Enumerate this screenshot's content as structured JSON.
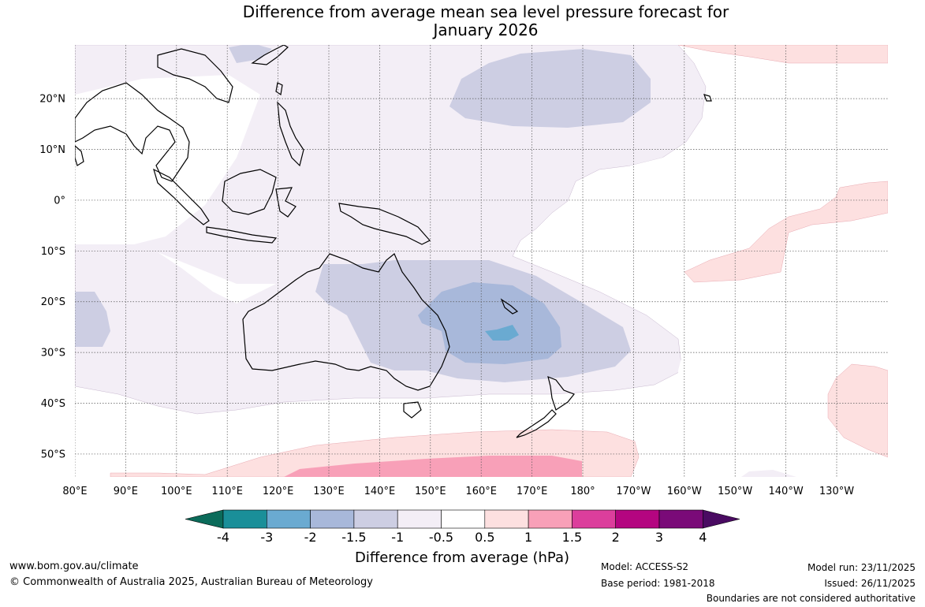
{
  "title_line1": "Difference from average mean sea level pressure forecast for",
  "title_line2": "January 2026",
  "lat_labels": [
    "20°N",
    "10°N",
    "0°",
    "10°S",
    "20°S",
    "30°S",
    "40°S",
    "50°S"
  ],
  "lon_labels": [
    "80°E",
    "90°E",
    "100°E",
    "110°E",
    "120°E",
    "130°E",
    "140°E",
    "150°E",
    "160°E",
    "170°E",
    "180°",
    "170°W",
    "160°W",
    "150°W",
    "140°W",
    "130°W"
  ],
  "legend": {
    "title": "Difference from average (hPa)",
    "tick_labels": [
      "-4",
      "-3",
      "-2",
      "-1.5",
      "-1",
      "-0.5",
      "0.5",
      "1",
      "1.5",
      "2",
      "3",
      "4"
    ],
    "colors": {
      "lt_-4": "#0b6b5a",
      "-4_-3": "#1a8f99",
      "-3_-2": "#6aaad1",
      "-2_-1.5": "#a8b8da",
      "-1.5_-1": "#cdcee3",
      "-1_-0.5": "#f3eef6",
      "-0.5_0.5": "#ffffff",
      "0.5_1": "#fde0e0",
      "1_1.5": "#f8a0b8",
      "1.5_2": "#dc3e9c",
      "2_3": "#b40580",
      "3_4": "#7a0a78",
      "gt_4": "#4a0b62"
    }
  },
  "footer": {
    "website": "www.bom.gov.au/climate",
    "copyright": "© Commonwealth of Australia 2025, Australian Bureau of Meteorology",
    "model": "Model: ACCESS-S2",
    "base_period": "Base period: 1981-2018",
    "model_run": "Model run: 23/11/2025",
    "issued": "Issued: 26/11/2025",
    "disclaimer": "Boundaries are not considered authoritative"
  }
}
